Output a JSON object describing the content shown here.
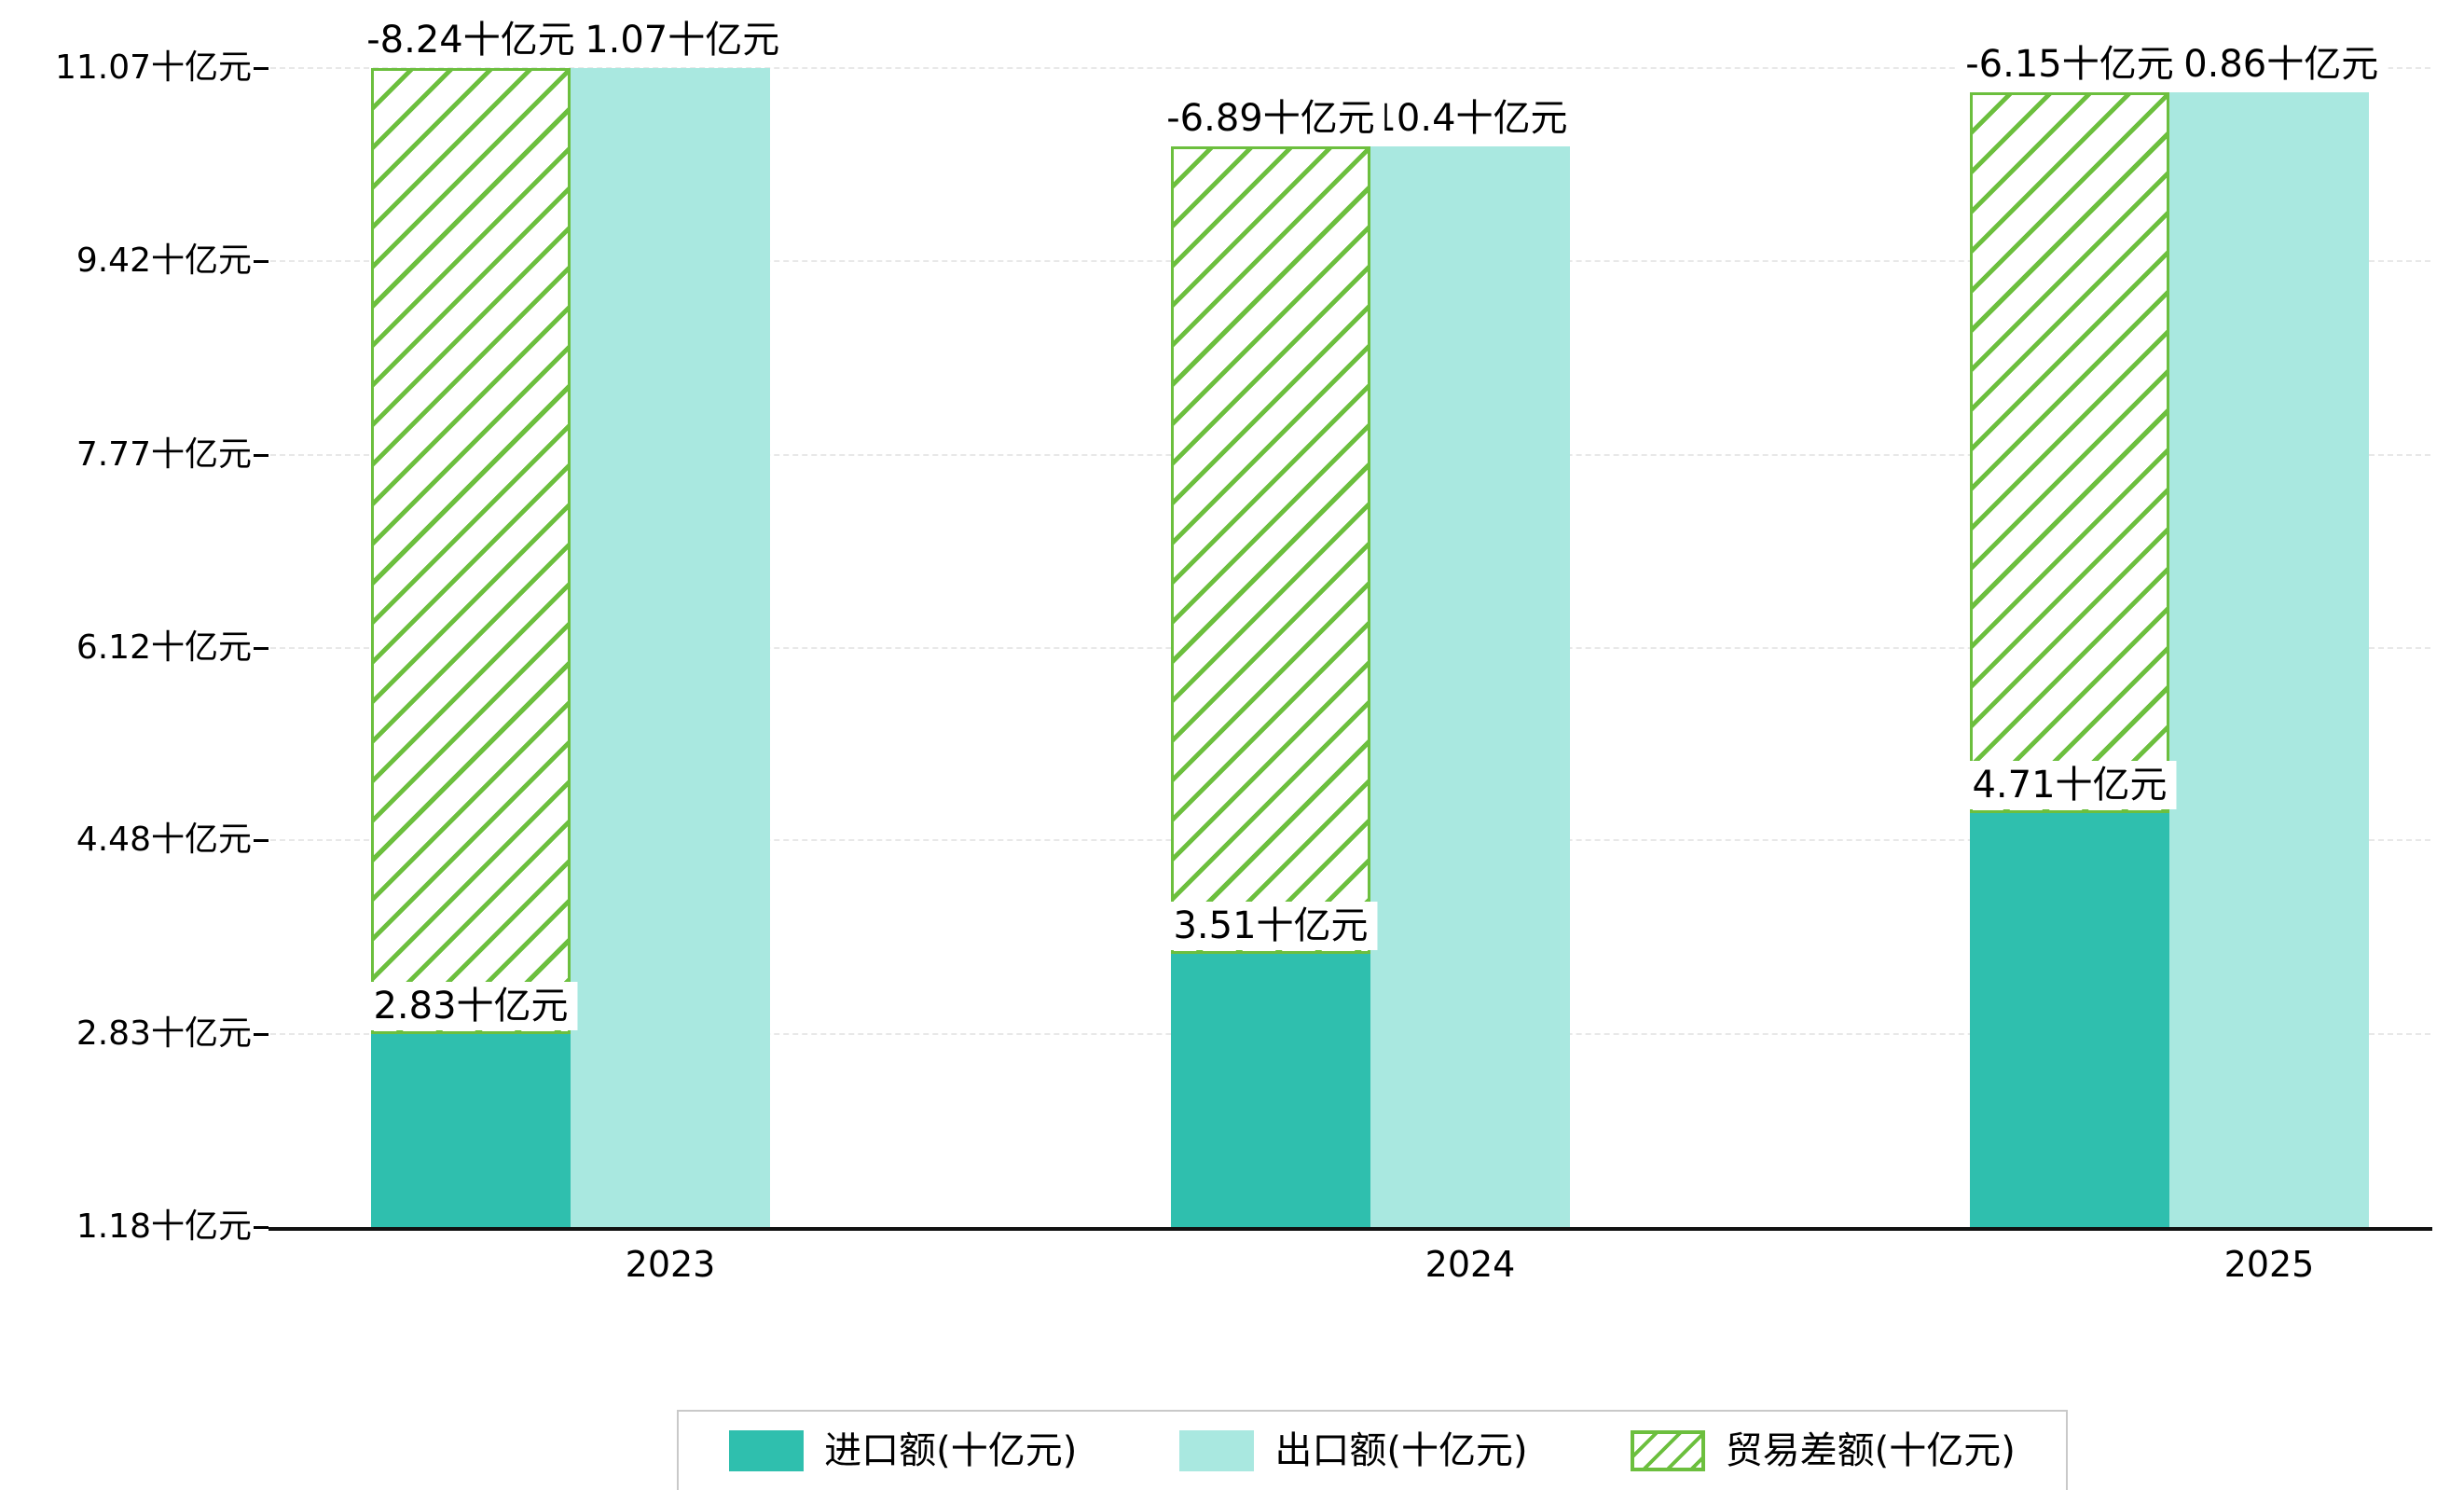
{
  "chart_data": {
    "type": "bar",
    "categories": [
      "2023",
      "2024",
      "2025"
    ],
    "series": [
      {
        "name": "进口额(十亿元)",
        "values": [
          2.83,
          3.51,
          4.71
        ]
      },
      {
        "name": "出口额(十亿元)",
        "values": [
          11.07,
          10.4,
          10.86
        ]
      },
      {
        "name": "贸易差额(十亿元)",
        "values": [
          -8.24,
          -6.89,
          -6.15
        ]
      }
    ],
    "data_labels": {
      "import": [
        "2.83十亿元",
        "3.51十亿元",
        "4.71十亿元"
      ],
      "export": [
        "11.07十亿元",
        "10.4十亿元",
        "10.86十亿元"
      ],
      "balance": [
        "-8.24十亿元",
        "-6.89十亿元",
        "-6.15十亿元"
      ]
    },
    "y_ticks": [
      "11.07十亿元",
      "9.42十亿元",
      "7.77十亿元",
      "6.12十亿元",
      "4.48十亿元",
      "2.83十亿元",
      "1.18十亿元"
    ],
    "y_tick_values": [
      11.07,
      9.42,
      7.77,
      6.12,
      4.48,
      2.83,
      1.18
    ],
    "ylim": [
      1.18,
      11.07
    ],
    "title": "",
    "xlabel": "",
    "ylabel": "",
    "grid": "dashed-horizontal",
    "legend_position": "bottom-center",
    "colors": {
      "import": "#2fbfae",
      "export": "#a9e8e0",
      "balance": "#6cbf3e",
      "grid": "#e8e8e8",
      "axis": "#111111"
    }
  },
  "legend": {
    "items": [
      {
        "label": "进口额(十亿元)",
        "swatch": "import-solid"
      },
      {
        "label": "出口额(十亿元)",
        "swatch": "export-solid"
      },
      {
        "label": "贸易差额(十亿元)",
        "swatch": "balance-hatched"
      }
    ]
  }
}
